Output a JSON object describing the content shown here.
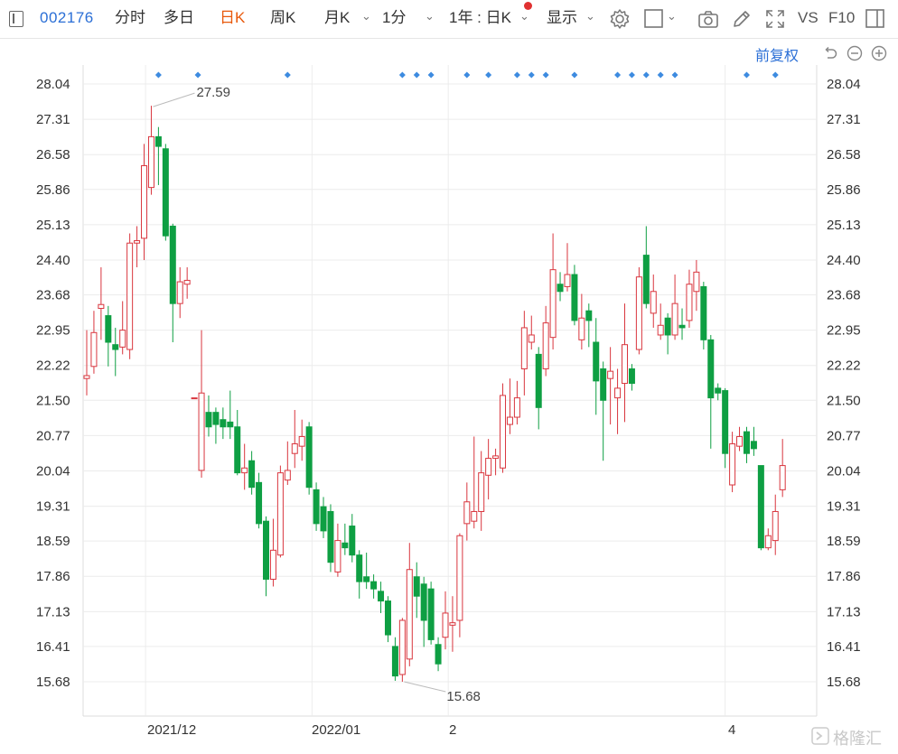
{
  "toolbar": {
    "stock_code": "002176",
    "tabs": [
      "分时",
      "多日",
      "日K",
      "周K",
      "月K",
      "1分"
    ],
    "active_tab": "日K",
    "range_select": "1年 : 日K",
    "display_label": "显示",
    "vs_label": "VS",
    "f10_label": "F10",
    "adjust_label": "前复权"
  },
  "watermark": "格隆汇",
  "colors": {
    "up": "#d9363e",
    "down": "#0e9f43",
    "accent": "#2b6fd6",
    "active_tab": "#e8590c"
  },
  "chart_data": {
    "type": "candlestick",
    "y_ticks": [
      "28.04",
      "27.31",
      "26.58",
      "25.86",
      "25.13",
      "24.40",
      "23.68",
      "22.95",
      "22.22",
      "21.50",
      "20.77",
      "20.04",
      "19.31",
      "18.59",
      "17.86",
      "17.13",
      "16.41",
      "15.68"
    ],
    "ylim": [
      15.68,
      28.04
    ],
    "x_labels": [
      "2021/12",
      "2022/01",
      "2",
      "4"
    ],
    "annotations": [
      {
        "text": "27.59",
        "value": 27.59
      },
      {
        "text": "15.68",
        "value": 15.68
      }
    ],
    "candles": [
      {
        "o": 21.95,
        "c": 22.01,
        "h": 22.95,
        "l": 21.6
      },
      {
        "o": 22.2,
        "c": 22.9,
        "h": 23.35,
        "l": 22.05
      },
      {
        "o": 23.4,
        "c": 23.48,
        "h": 24.25,
        "l": 22.75
      },
      {
        "o": 23.25,
        "c": 22.7,
        "h": 23.45,
        "l": 22.2
      },
      {
        "o": 22.65,
        "c": 22.55,
        "h": 23.0,
        "l": 22.0
      },
      {
        "o": 22.6,
        "c": 22.95,
        "h": 23.55,
        "l": 22.45
      },
      {
        "o": 22.55,
        "c": 24.75,
        "h": 24.95,
        "l": 22.35
      },
      {
        "o": 24.75,
        "c": 24.8,
        "h": 25.1,
        "l": 24.25
      },
      {
        "o": 24.85,
        "c": 26.35,
        "h": 26.8,
        "l": 24.4
      },
      {
        "o": 25.9,
        "c": 26.95,
        "h": 27.59,
        "l": 25.75
      },
      {
        "o": 26.95,
        "c": 26.75,
        "h": 27.15,
        "l": 25.95
      },
      {
        "o": 26.7,
        "c": 24.9,
        "h": 26.8,
        "l": 24.8
      },
      {
        "o": 25.1,
        "c": 23.5,
        "h": 25.15,
        "l": 22.7
      },
      {
        "o": 23.5,
        "c": 23.95,
        "h": 24.25,
        "l": 23.2
      },
      {
        "o": 23.9,
        "c": 23.98,
        "h": 24.25,
        "l": 23.6
      },
      {
        "o": 21.55,
        "c": 21.55,
        "h": 21.55,
        "l": 21.55
      },
      {
        "o": 20.05,
        "c": 21.65,
        "h": 22.95,
        "l": 19.9
      },
      {
        "o": 21.25,
        "c": 20.95,
        "h": 21.6,
        "l": 20.75
      },
      {
        "o": 21.25,
        "c": 21.0,
        "h": 21.35,
        "l": 20.6
      },
      {
        "o": 21.1,
        "c": 20.95,
        "h": 21.35,
        "l": 20.7
      },
      {
        "o": 21.05,
        "c": 20.95,
        "h": 21.7,
        "l": 20.7
      },
      {
        "o": 20.95,
        "c": 20.0,
        "h": 21.3,
        "l": 19.95
      },
      {
        "o": 20.0,
        "c": 20.1,
        "h": 20.6,
        "l": 19.65
      },
      {
        "o": 20.25,
        "c": 19.7,
        "h": 20.45,
        "l": 19.55
      },
      {
        "o": 19.8,
        "c": 18.95,
        "h": 20.0,
        "l": 18.85
      },
      {
        "o": 19.0,
        "c": 17.8,
        "h": 19.1,
        "l": 17.45
      },
      {
        "o": 17.8,
        "c": 18.4,
        "h": 19.05,
        "l": 17.65
      },
      {
        "o": 18.3,
        "c": 20.0,
        "h": 20.15,
        "l": 18.25
      },
      {
        "o": 19.85,
        "c": 20.05,
        "h": 20.65,
        "l": 19.75
      },
      {
        "o": 20.4,
        "c": 20.6,
        "h": 21.3,
        "l": 20.1
      },
      {
        "o": 20.55,
        "c": 20.75,
        "h": 21.1,
        "l": 20.25
      },
      {
        "o": 20.95,
        "c": 19.7,
        "h": 21.05,
        "l": 19.55
      },
      {
        "o": 19.65,
        "c": 18.95,
        "h": 19.8,
        "l": 18.8
      },
      {
        "o": 19.3,
        "c": 18.8,
        "h": 19.5,
        "l": 18.65
      },
      {
        "o": 19.2,
        "c": 18.15,
        "h": 19.35,
        "l": 17.95
      },
      {
        "o": 17.95,
        "c": 18.6,
        "h": 18.95,
        "l": 17.85
      },
      {
        "o": 18.55,
        "c": 18.45,
        "h": 18.95,
        "l": 18.3
      },
      {
        "o": 18.9,
        "c": 18.3,
        "h": 19.15,
        "l": 18.15
      },
      {
        "o": 18.3,
        "c": 17.75,
        "h": 18.4,
        "l": 17.4
      },
      {
        "o": 17.85,
        "c": 17.75,
        "h": 18.35,
        "l": 17.6
      },
      {
        "o": 17.75,
        "c": 17.6,
        "h": 17.9,
        "l": 17.4
      },
      {
        "o": 17.55,
        "c": 17.35,
        "h": 17.75,
        "l": 17.1
      },
      {
        "o": 17.35,
        "c": 16.65,
        "h": 17.45,
        "l": 16.5
      },
      {
        "o": 16.41,
        "c": 15.8,
        "h": 16.6,
        "l": 15.7
      },
      {
        "o": 15.83,
        "c": 16.95,
        "h": 17.0,
        "l": 15.68
      },
      {
        "o": 16.15,
        "c": 18.0,
        "h": 18.55,
        "l": 16.0
      },
      {
        "o": 17.85,
        "c": 17.45,
        "h": 18.15,
        "l": 17.0
      },
      {
        "o": 17.7,
        "c": 16.95,
        "h": 17.85,
        "l": 16.4
      },
      {
        "o": 17.6,
        "c": 16.55,
        "h": 17.75,
        "l": 16.45
      },
      {
        "o": 16.45,
        "c": 16.05,
        "h": 16.6,
        "l": 15.9
      },
      {
        "o": 16.6,
        "c": 17.1,
        "h": 17.55,
        "l": 16.35
      },
      {
        "o": 16.85,
        "c": 16.9,
        "h": 17.45,
        "l": 16.3
      },
      {
        "o": 16.95,
        "c": 18.7,
        "h": 18.75,
        "l": 16.6
      },
      {
        "o": 18.95,
        "c": 19.4,
        "h": 19.8,
        "l": 18.6
      },
      {
        "o": 19.0,
        "c": 19.2,
        "h": 20.75,
        "l": 18.85
      },
      {
        "o": 19.2,
        "c": 20.0,
        "h": 20.45,
        "l": 18.8
      },
      {
        "o": 19.95,
        "c": 20.3,
        "h": 20.7,
        "l": 19.45
      },
      {
        "o": 20.3,
        "c": 20.35,
        "h": 20.5,
        "l": 19.95
      },
      {
        "o": 20.1,
        "c": 21.6,
        "h": 21.85,
        "l": 20.0
      },
      {
        "o": 21.0,
        "c": 21.15,
        "h": 21.95,
        "l": 20.8
      },
      {
        "o": 21.15,
        "c": 21.55,
        "h": 21.9,
        "l": 21.0
      },
      {
        "o": 22.15,
        "c": 23.0,
        "h": 23.35,
        "l": 21.6
      },
      {
        "o": 22.7,
        "c": 22.85,
        "h": 23.25,
        "l": 22.55
      },
      {
        "o": 22.45,
        "c": 21.35,
        "h": 22.6,
        "l": 20.9
      },
      {
        "o": 22.15,
        "c": 23.1,
        "h": 23.45,
        "l": 22.0
      },
      {
        "o": 22.8,
        "c": 24.2,
        "h": 24.95,
        "l": 22.55
      },
      {
        "o": 23.9,
        "c": 23.75,
        "h": 24.15,
        "l": 23.55
      },
      {
        "o": 23.85,
        "c": 24.1,
        "h": 24.75,
        "l": 23.75
      },
      {
        "o": 24.1,
        "c": 23.15,
        "h": 24.3,
        "l": 23.05
      },
      {
        "o": 22.75,
        "c": 23.2,
        "h": 23.7,
        "l": 22.55
      },
      {
        "o": 23.35,
        "c": 23.15,
        "h": 23.5,
        "l": 22.6
      },
      {
        "o": 22.7,
        "c": 21.9,
        "h": 23.2,
        "l": 21.2
      },
      {
        "o": 22.15,
        "c": 21.5,
        "h": 22.3,
        "l": 20.25
      },
      {
        "o": 21.95,
        "c": 22.1,
        "h": 22.6,
        "l": 21.0
      },
      {
        "o": 21.55,
        "c": 21.75,
        "h": 22.15,
        "l": 20.8
      },
      {
        "o": 21.85,
        "c": 22.65,
        "h": 23.5,
        "l": 21.05
      },
      {
        "o": 22.15,
        "c": 21.85,
        "h": 22.25,
        "l": 21.7
      },
      {
        "o": 22.55,
        "c": 24.05,
        "h": 24.25,
        "l": 22.45
      },
      {
        "o": 24.5,
        "c": 23.5,
        "h": 25.1,
        "l": 23.4
      },
      {
        "o": 23.3,
        "c": 23.75,
        "h": 24.1,
        "l": 23.0
      },
      {
        "o": 22.85,
        "c": 23.05,
        "h": 23.5,
        "l": 22.75
      },
      {
        "o": 23.2,
        "c": 22.85,
        "h": 23.3,
        "l": 22.45
      },
      {
        "o": 22.85,
        "c": 23.5,
        "h": 24.1,
        "l": 22.75
      },
      {
        "o": 23.05,
        "c": 23.0,
        "h": 23.4,
        "l": 22.75
      },
      {
        "o": 23.15,
        "c": 23.9,
        "h": 24.2,
        "l": 23.0
      },
      {
        "o": 23.75,
        "c": 24.15,
        "h": 24.4,
        "l": 23.35
      },
      {
        "o": 23.85,
        "c": 22.75,
        "h": 23.95,
        "l": 22.55
      },
      {
        "o": 22.75,
        "c": 21.55,
        "h": 22.85,
        "l": 20.5
      },
      {
        "o": 21.75,
        "c": 21.65,
        "h": 21.85,
        "l": 21.5
      },
      {
        "o": 21.7,
        "c": 20.4,
        "h": 21.75,
        "l": 20.1
      },
      {
        "o": 19.75,
        "c": 20.6,
        "h": 20.85,
        "l": 19.6
      },
      {
        "o": 20.55,
        "c": 20.75,
        "h": 20.95,
        "l": 20.45
      },
      {
        "o": 20.85,
        "c": 20.4,
        "h": 20.95,
        "l": 20.2
      },
      {
        "o": 20.65,
        "c": 20.5,
        "h": 20.95,
        "l": 20.35
      },
      {
        "o": 20.15,
        "c": 18.45,
        "h": 20.15,
        "l": 18.4
      },
      {
        "o": 18.45,
        "c": 18.7,
        "h": 18.85,
        "l": 18.4
      },
      {
        "o": 18.6,
        "c": 19.2,
        "h": 19.55,
        "l": 18.3
      },
      {
        "o": 19.65,
        "c": 20.15,
        "h": 20.7,
        "l": 19.5
      }
    ],
    "grid": true
  }
}
